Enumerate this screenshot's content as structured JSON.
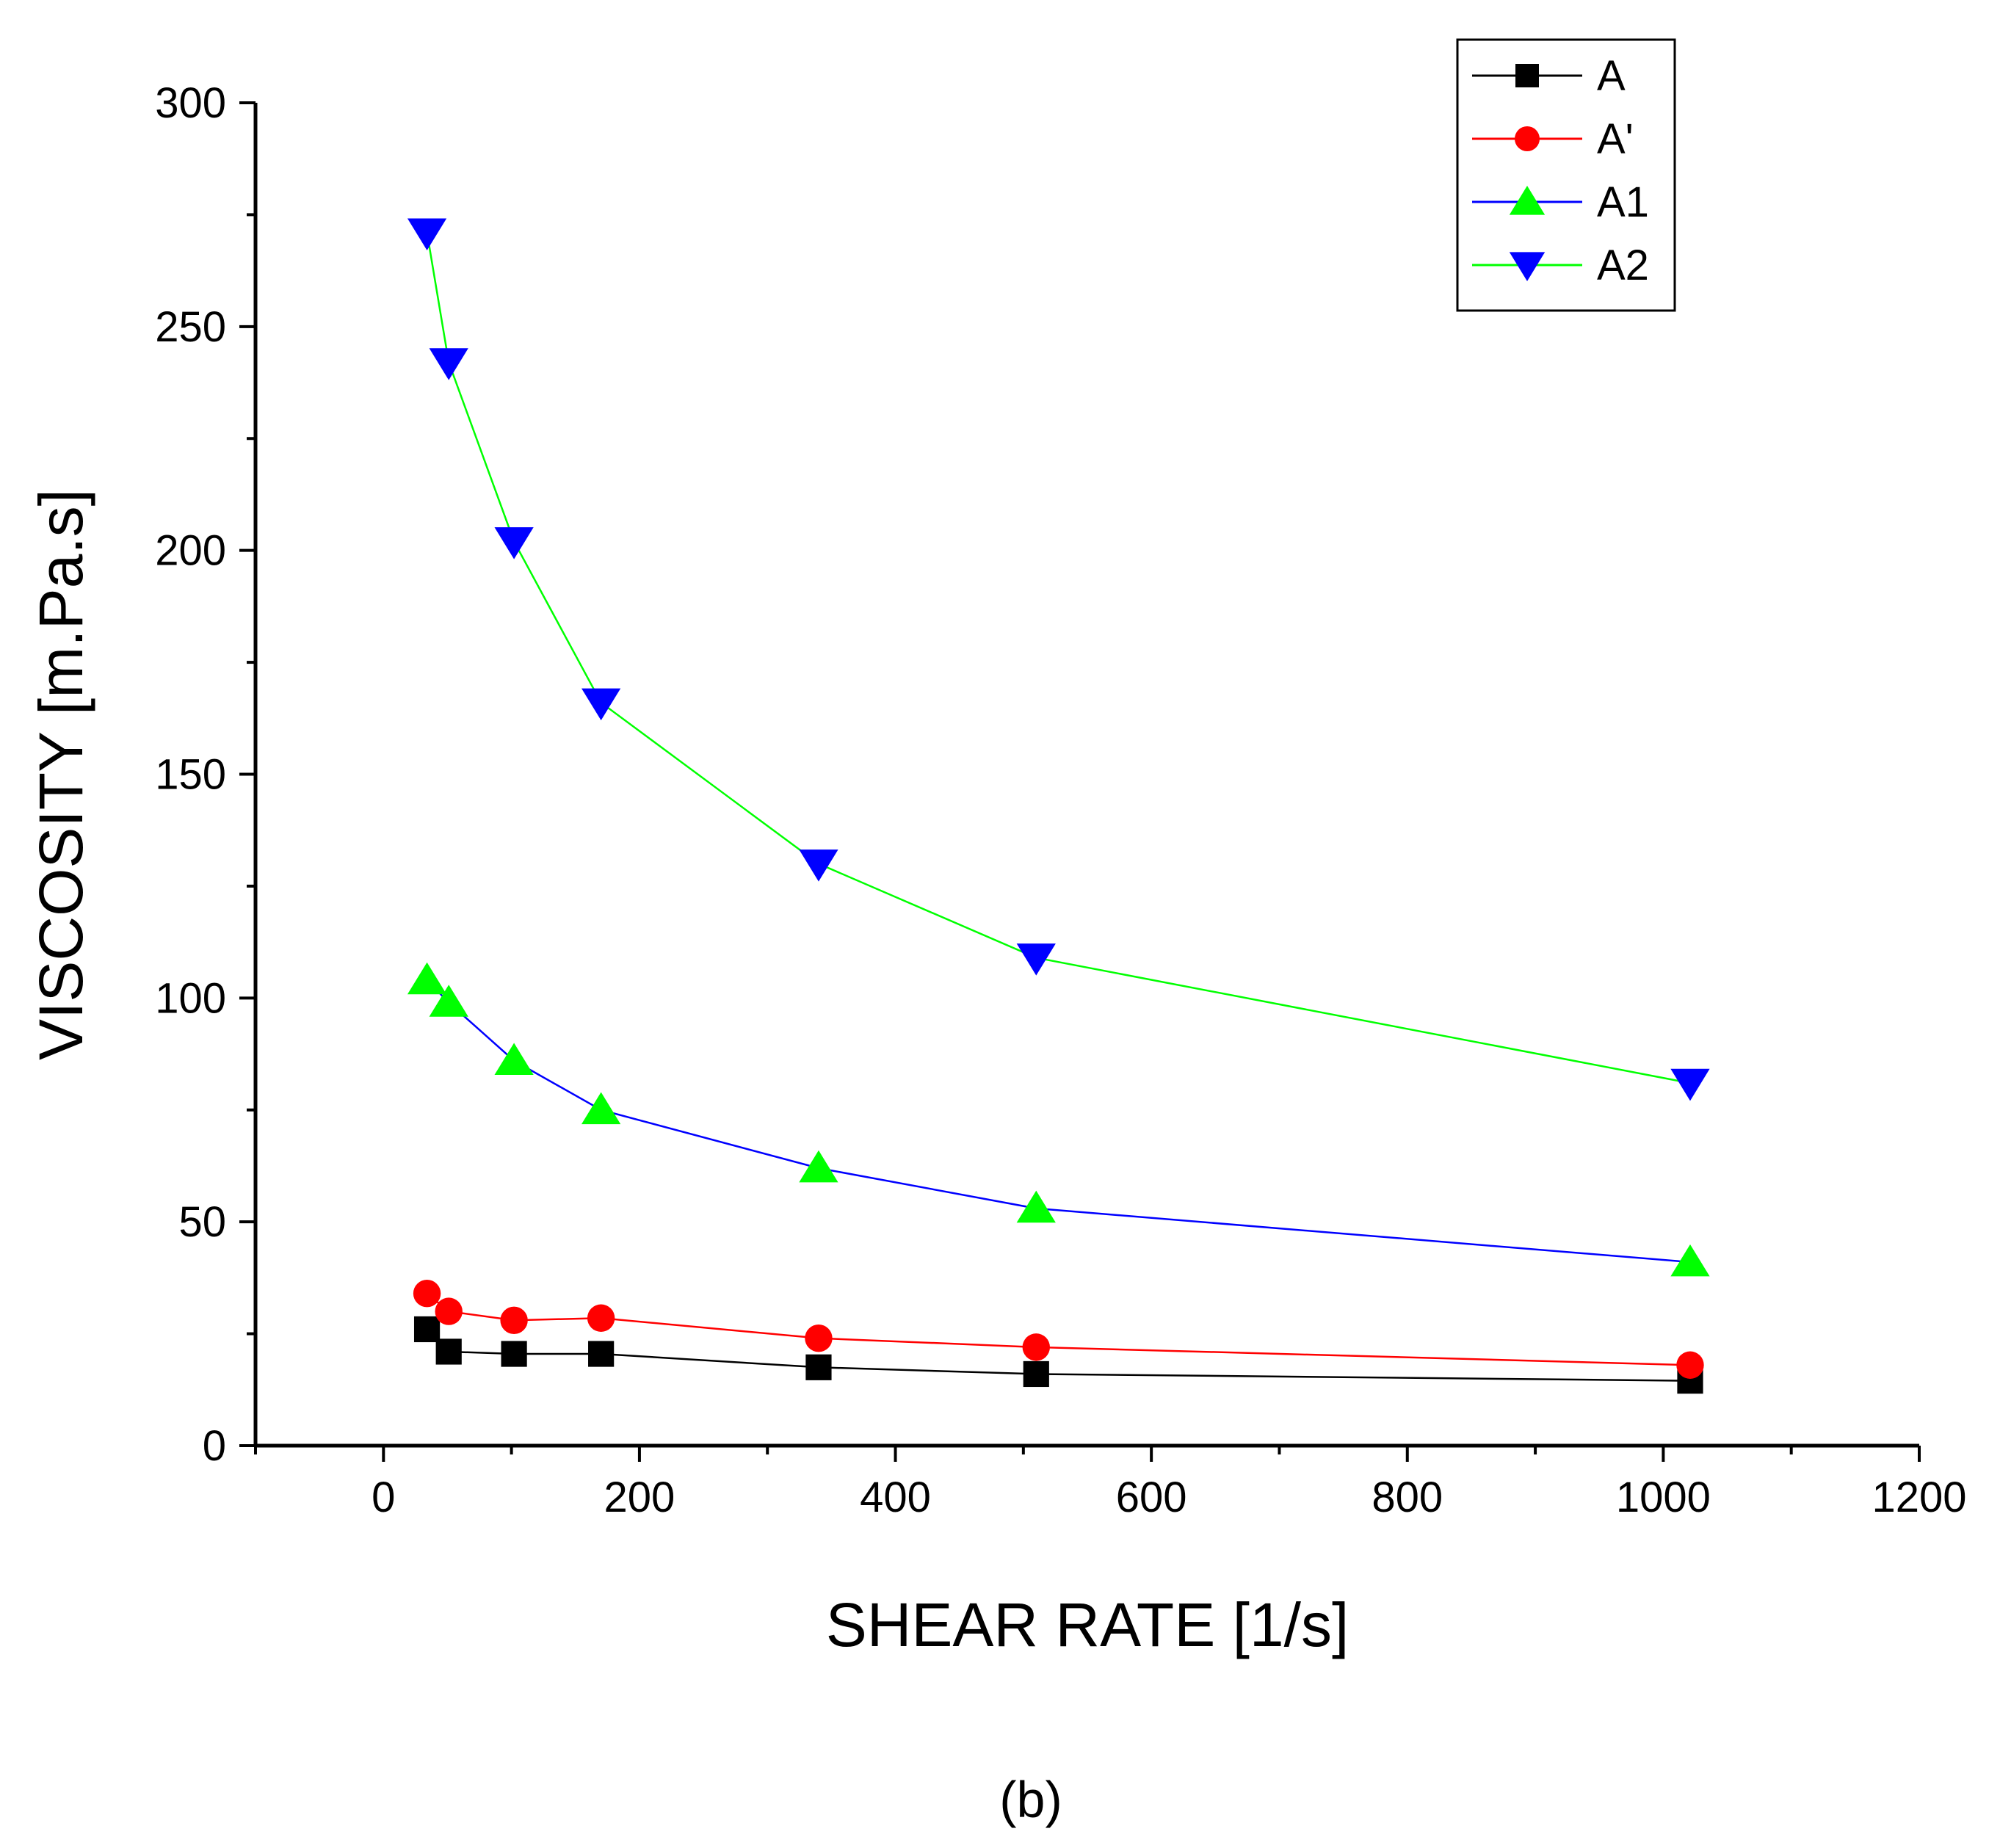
{
  "chart_data": {
    "type": "line",
    "xlabel": "SHEAR RATE [1/s]",
    "ylabel": "VISCOSITY [m.Pa.s]",
    "xlim": [
      -100,
      1200
    ],
    "ylim": [
      0,
      300
    ],
    "x_ticks": [
      "0",
      "200",
      "400",
      "600",
      "800",
      "1000",
      "1200"
    ],
    "y_ticks": [
      "0",
      "50",
      "100",
      "150",
      "200",
      "250",
      "300"
    ],
    "x_tick_values": [
      0,
      200,
      400,
      600,
      800,
      1000,
      1200
    ],
    "y_tick_values": [
      0,
      50,
      100,
      150,
      200,
      250,
      300
    ],
    "legend_position": "top-right",
    "x": [
      34,
      51,
      102,
      170,
      340,
      510,
      1021
    ],
    "series": [
      {
        "name": "A",
        "line_color": "#000000",
        "marker_color": "#000000",
        "marker": "square",
        "values": [
          26,
          21,
          20.5,
          20.5,
          17.5,
          16,
          14.5
        ]
      },
      {
        "name": "A'",
        "line_color": "#ff0000",
        "marker_color": "#ff0000",
        "marker": "circle",
        "values": [
          34,
          30,
          28,
          28.5,
          24,
          22,
          18
        ]
      },
      {
        "name": "A1",
        "line_color": "#0000ff",
        "marker_color": "#00ff00",
        "marker": "triangle-up",
        "values": [
          104,
          99,
          86,
          75,
          62,
          53,
          41
        ]
      },
      {
        "name": "A2",
        "line_color": "#00ff00",
        "marker_color": "#0000ff",
        "marker": "triangle-down",
        "values": [
          271,
          242,
          202,
          166,
          130,
          109,
          81
        ]
      }
    ]
  },
  "caption": "(b)"
}
